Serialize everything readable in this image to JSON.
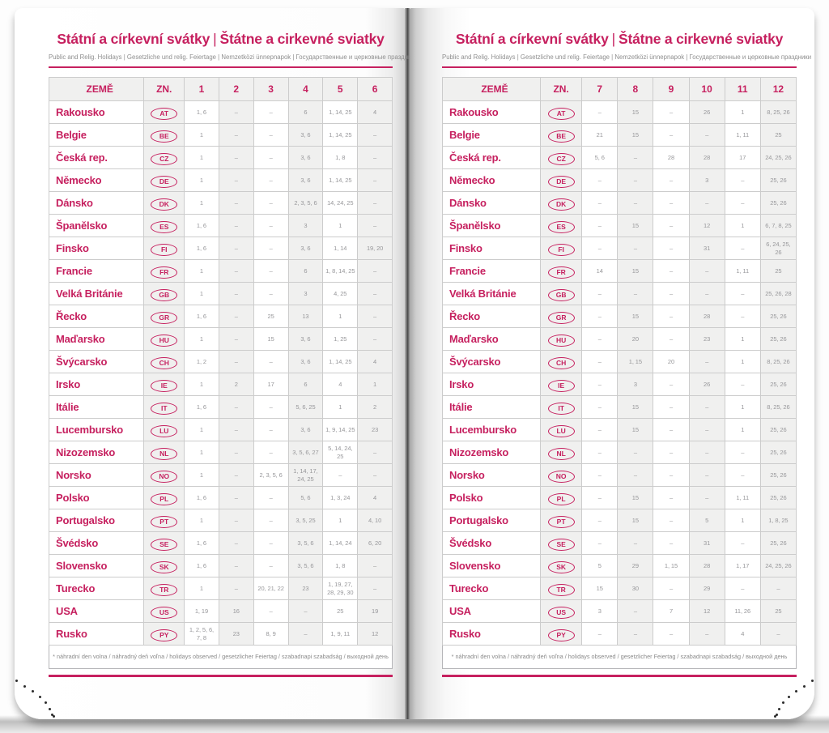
{
  "header": {
    "title_cz": "Státní a církevní svátky",
    "title_divider": "|",
    "title_sk": "Štátne a cirkevné sviatky",
    "subtitle": "Public and Relig. Holidays | Gesetzliche und relig. Feiertage | Nemzetközi ünnepnapok | Государственные и церковные праздники"
  },
  "footnote": "* náhradní den volna / náhradný deň voľna / holidays observed / gesetzlicher Feiertag / szabadnapi szabadság / выходной день",
  "colors": {
    "accent": "#c6205f",
    "cell_text": "#97979a",
    "shade": "#f0f0ef"
  },
  "table": {
    "col_country": "ZEMĚ",
    "col_code": "ZN.",
    "left_months": [
      "1",
      "2",
      "3",
      "4",
      "5",
      "6"
    ],
    "right_months": [
      "7",
      "8",
      "9",
      "10",
      "11",
      "12"
    ],
    "rows": [
      {
        "country": "Rakousko",
        "code": "AT",
        "left": [
          "1, 6",
          "–",
          "–",
          "6",
          "1, 14, 25",
          "4"
        ],
        "right": [
          "–",
          "15",
          "–",
          "26",
          "1",
          "8, 25, 26"
        ]
      },
      {
        "country": "Belgie",
        "code": "BE",
        "left": [
          "1",
          "–",
          "–",
          "3, 6",
          "1, 14, 25",
          "–"
        ],
        "right": [
          "21",
          "15",
          "–",
          "–",
          "1, 11",
          "25"
        ]
      },
      {
        "country": "Česká rep.",
        "code": "CZ",
        "left": [
          "1",
          "–",
          "–",
          "3, 6",
          "1, 8",
          "–"
        ],
        "right": [
          "5, 6",
          "–",
          "28",
          "28",
          "17",
          "24, 25, 26"
        ]
      },
      {
        "country": "Německo",
        "code": "DE",
        "left": [
          "1",
          "–",
          "–",
          "3, 6",
          "1, 14, 25",
          "–"
        ],
        "right": [
          "–",
          "–",
          "–",
          "3",
          "–",
          "25, 26"
        ]
      },
      {
        "country": "Dánsko",
        "code": "DK",
        "left": [
          "1",
          "–",
          "–",
          "2, 3, 5, 6",
          "14, 24, 25",
          "–"
        ],
        "right": [
          "–",
          "–",
          "–",
          "–",
          "–",
          "25, 26"
        ]
      },
      {
        "country": "Španělsko",
        "code": "ES",
        "left": [
          "1, 6",
          "–",
          "–",
          "3",
          "1",
          "–"
        ],
        "right": [
          "–",
          "15",
          "–",
          "12",
          "1",
          "6, 7, 8, 25"
        ]
      },
      {
        "country": "Finsko",
        "code": "FI",
        "left": [
          "1, 6",
          "–",
          "–",
          "3, 6",
          "1, 14",
          "19, 20"
        ],
        "right": [
          "–",
          "–",
          "–",
          "31",
          "–",
          "6, 24, 25, 26"
        ]
      },
      {
        "country": "Francie",
        "code": "FR",
        "left": [
          "1",
          "–",
          "–",
          "6",
          "1, 8, 14, 25",
          "–"
        ],
        "right": [
          "14",
          "15",
          "–",
          "–",
          "1, 11",
          "25"
        ]
      },
      {
        "country": "Velká Británie",
        "code": "GB",
        "left": [
          "1",
          "–",
          "–",
          "3",
          "4, 25",
          "–"
        ],
        "right": [
          "–",
          "–",
          "–",
          "–",
          "–",
          "25, 26, 28"
        ]
      },
      {
        "country": "Řecko",
        "code": "GR",
        "left": [
          "1, 6",
          "–",
          "25",
          "13",
          "1",
          "–"
        ],
        "right": [
          "–",
          "15",
          "–",
          "28",
          "–",
          "25, 26"
        ]
      },
      {
        "country": "Maďarsko",
        "code": "HU",
        "left": [
          "1",
          "–",
          "15",
          "3, 6",
          "1, 25",
          "–"
        ],
        "right": [
          "–",
          "20",
          "–",
          "23",
          "1",
          "25, 26"
        ]
      },
      {
        "country": "Švýcarsko",
        "code": "CH",
        "left": [
          "1, 2",
          "–",
          "–",
          "3, 6",
          "1, 14, 25",
          "4"
        ],
        "right": [
          "–",
          "1, 15",
          "20",
          "–",
          "1",
          "8, 25, 26"
        ]
      },
      {
        "country": "Irsko",
        "code": "IE",
        "left": [
          "1",
          "2",
          "17",
          "6",
          "4",
          "1"
        ],
        "right": [
          "–",
          "3",
          "–",
          "26",
          "–",
          "25, 26"
        ]
      },
      {
        "country": "Itálie",
        "code": "IT",
        "left": [
          "1, 6",
          "–",
          "–",
          "5, 6, 25",
          "1",
          "2"
        ],
        "right": [
          "–",
          "15",
          "–",
          "–",
          "1",
          "8, 25, 26"
        ]
      },
      {
        "country": "Lucembursko",
        "code": "LU",
        "left": [
          "1",
          "–",
          "–",
          "3, 6",
          "1, 9, 14, 25",
          "23"
        ],
        "right": [
          "–",
          "15",
          "–",
          "–",
          "1",
          "25, 26"
        ]
      },
      {
        "country": "Nizozemsko",
        "code": "NL",
        "left": [
          "1",
          "–",
          "–",
          "3, 5, 6, 27",
          "5, 14, 24, 25",
          "–"
        ],
        "right": [
          "–",
          "–",
          "–",
          "–",
          "–",
          "25, 26"
        ]
      },
      {
        "country": "Norsko",
        "code": "NO",
        "left": [
          "1",
          "–",
          "2, 3, 5, 6",
          "1, 14, 17, 24, 25",
          "–",
          "–"
        ],
        "right": [
          "–",
          "–",
          "–",
          "–",
          "–",
          "25, 26"
        ]
      },
      {
        "country": "Polsko",
        "code": "PL",
        "left": [
          "1, 6",
          "–",
          "–",
          "5, 6",
          "1, 3, 24",
          "4"
        ],
        "right": [
          "–",
          "15",
          "–",
          "–",
          "1, 11",
          "25, 26"
        ]
      },
      {
        "country": "Portugalsko",
        "code": "PT",
        "left": [
          "1",
          "–",
          "–",
          "3, 5, 25",
          "1",
          "4, 10"
        ],
        "right": [
          "–",
          "15",
          "–",
          "5",
          "1",
          "1, 8, 25"
        ]
      },
      {
        "country": "Švédsko",
        "code": "SE",
        "left": [
          "1, 6",
          "–",
          "–",
          "3, 5, 6",
          "1, 14, 24",
          "6, 20"
        ],
        "right": [
          "–",
          "–",
          "–",
          "31",
          "–",
          "25, 26"
        ]
      },
      {
        "country": "Slovensko",
        "code": "SK",
        "left": [
          "1, 6",
          "–",
          "–",
          "3, 5, 6",
          "1, 8",
          "–"
        ],
        "right": [
          "5",
          "29",
          "1, 15",
          "28",
          "1, 17",
          "24, 25, 26"
        ]
      },
      {
        "country": "Turecko",
        "code": "TR",
        "left": [
          "1",
          "–",
          "20, 21, 22",
          "23",
          "1, 19, 27, 28, 29, 30",
          "–"
        ],
        "right": [
          "15",
          "30",
          "–",
          "29",
          "–",
          "–"
        ]
      },
      {
        "country": "USA",
        "code": "US",
        "left": [
          "1, 19",
          "16",
          "–",
          "–",
          "25",
          "19"
        ],
        "right": [
          "3",
          "–",
          "7",
          "12",
          "11, 26",
          "25"
        ]
      },
      {
        "country": "Rusko",
        "code": "PY",
        "left": [
          "1, 2, 5, 6, 7, 8",
          "23",
          "8, 9",
          "–",
          "1, 9, 11",
          "12"
        ],
        "right": [
          "–",
          "–",
          "–",
          "–",
          "4",
          "–"
        ]
      }
    ]
  }
}
